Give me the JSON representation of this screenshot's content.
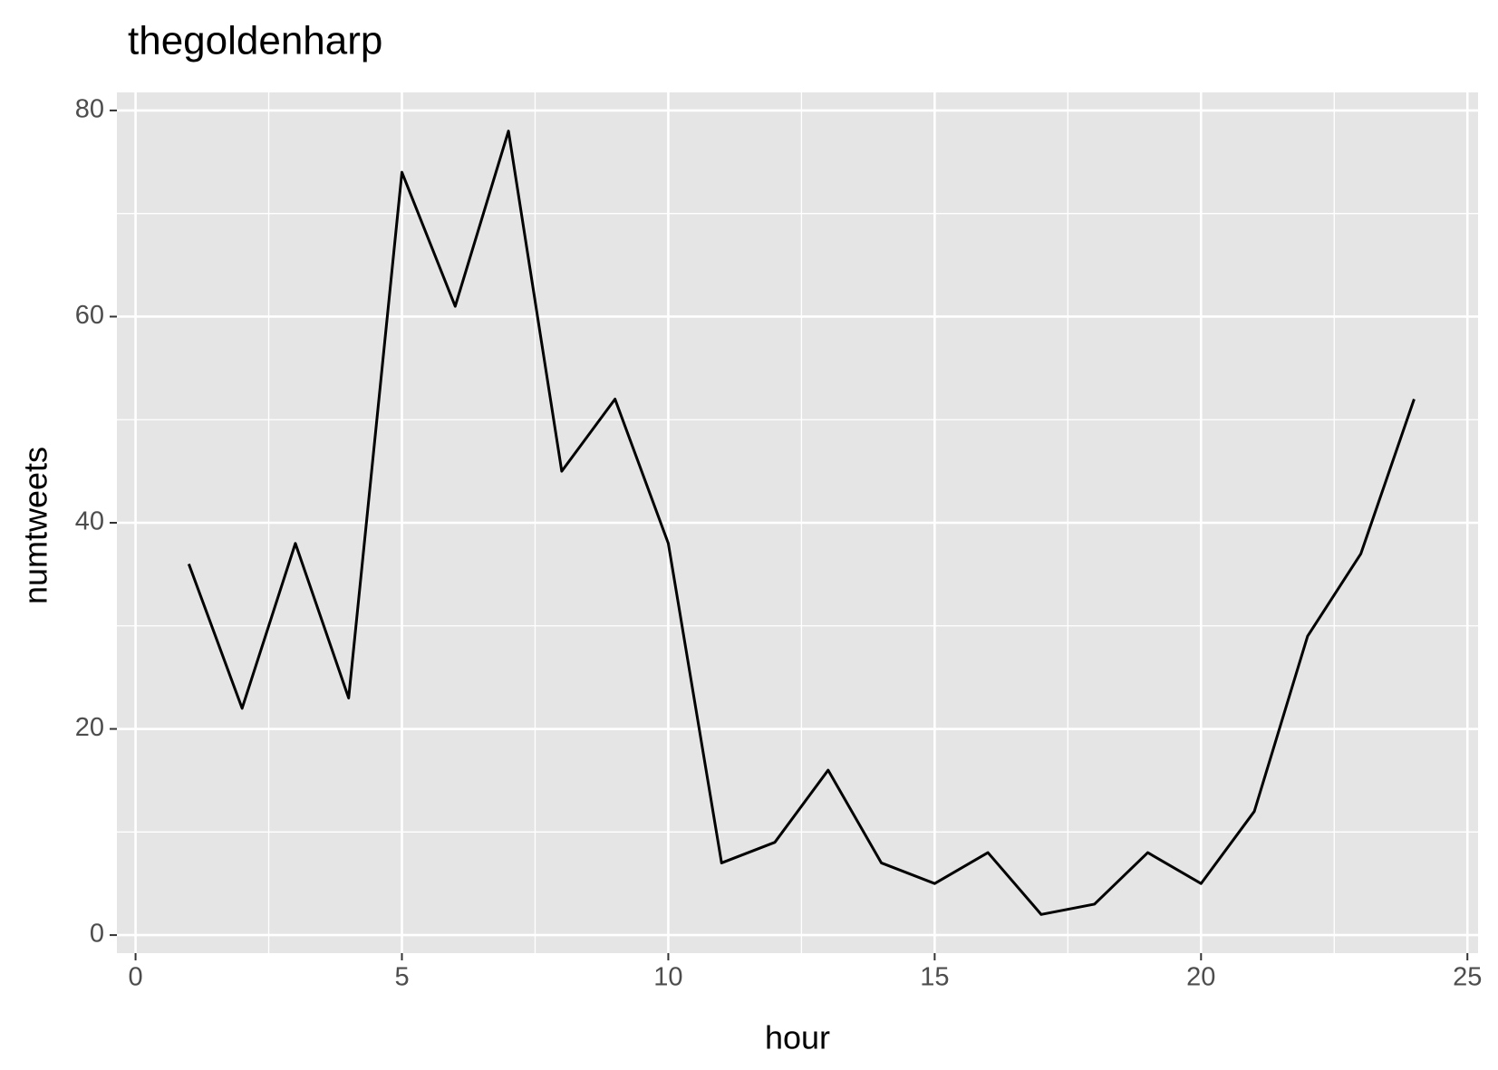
{
  "chart_data": {
    "type": "line",
    "title": "thegoldenharp",
    "x_label": "hour",
    "y_label": "numtweets",
    "x": [
      1,
      2,
      3,
      4,
      5,
      6,
      7,
      8,
      9,
      10,
      11,
      12,
      13,
      14,
      15,
      16,
      17,
      18,
      19,
      20,
      21,
      22,
      23,
      24
    ],
    "series": [
      {
        "name": "numtweets",
        "color": "#000000",
        "values": [
          36,
          22,
          38,
          23,
          74,
          61,
          78,
          45,
          52,
          38,
          7,
          9,
          16,
          7,
          5,
          8,
          2,
          3,
          8,
          5,
          12,
          29,
          37,
          52
        ]
      }
    ],
    "xlim": [
      -0.35,
      25.2
    ],
    "ylim": [
      -1.75,
      81.75
    ],
    "xticks": [
      0,
      5,
      10,
      15,
      20,
      25
    ],
    "yticks": [
      0,
      20,
      40,
      60,
      80
    ],
    "x_minor_ticks": [
      2.5,
      7.5,
      12.5,
      17.5,
      22.5
    ],
    "y_minor_ticks": [
      10,
      30,
      50,
      70
    ],
    "grid": true,
    "panel_color": "#e5e5e5"
  }
}
